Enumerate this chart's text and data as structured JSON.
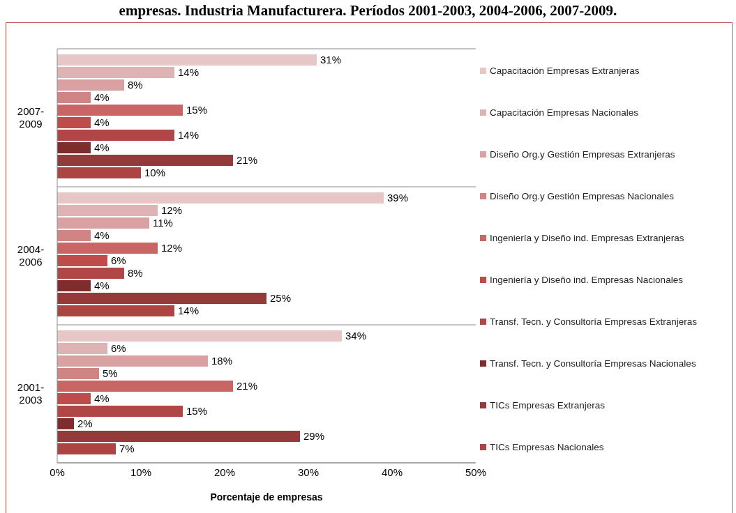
{
  "chart_data": {
    "type": "bar",
    "orientation": "horizontal",
    "title": "empresas. Industria Manufacturera. Períodos 2001-2003, 2004-2006, 2007-2009.",
    "xlabel": "Porcentaje de empresas",
    "categories": [
      "2007-2009",
      "2004-2006",
      "2001-2003"
    ],
    "series": [
      {
        "name": "Capacitación Empresas Extranjeras",
        "color": "#e7c6c7",
        "values": [
          31,
          39,
          34
        ],
        "value_labels": [
          "31%",
          "39%",
          "34%"
        ]
      },
      {
        "name": "Capacitación Empresas Nacionales",
        "color": "#dfb3b3",
        "values": [
          14,
          12,
          6
        ],
        "value_labels": [
          "14%",
          "12%",
          "6%"
        ]
      },
      {
        "name": "Diseño Org.y Gestión Empresas Extranjeras",
        "color": "#d9a1a1",
        "values": [
          8,
          11,
          18
        ],
        "value_labels": [
          "8%",
          "11%",
          "18%"
        ]
      },
      {
        "name": "Diseño Org.y Gestión Empresas Nacionales",
        "color": "#d08585",
        "values": [
          4,
          4,
          5
        ],
        "value_labels": [
          "4%",
          "4%",
          "5%"
        ]
      },
      {
        "name": "Ingeniería y Diseño ind. Empresas Extranjeras",
        "color": "#c96565",
        "values": [
          15,
          12,
          21
        ],
        "value_labels": [
          "15%",
          "12%",
          "21%"
        ]
      },
      {
        "name": "Ingeniería y Diseño ind. Empresas Nacionales",
        "color": "#c04b4b",
        "values": [
          4,
          6,
          4
        ],
        "value_labels": [
          "4%",
          "6%",
          "4%"
        ]
      },
      {
        "name": "Transf. Tecn. y Consultoría Empresas Extranjeras",
        "color": "#b04646",
        "values": [
          14,
          8,
          15
        ],
        "value_labels": [
          "14%",
          "8%",
          "15%"
        ]
      },
      {
        "name": "Transf. Tecn. y Consultoría Empresas Nacionales",
        "color": "#7f2c2c",
        "values": [
          4,
          4,
          2
        ],
        "value_labels": [
          "4%",
          "4%",
          "2%"
        ]
      },
      {
        "name": "TICs Empresas Extranjeras",
        "color": "#953a3a",
        "values": [
          21,
          25,
          29
        ],
        "value_labels": [
          "21%",
          "25%",
          "29%"
        ]
      },
      {
        "name": "TICs Empresas Nacionales",
        "color": "#ad4444",
        "values": [
          10,
          14,
          7
        ],
        "value_labels": [
          "10%",
          "14%",
          "7%"
        ]
      }
    ],
    "xlim": [
      0,
      50
    ],
    "xticks": [
      {
        "value": 0,
        "label": "0%"
      },
      {
        "value": 10,
        "label": "10%"
      },
      {
        "value": 20,
        "label": "20%"
      },
      {
        "value": 30,
        "label": "30%"
      },
      {
        "value": 40,
        "label": "40%"
      },
      {
        "value": 50,
        "label": "50%"
      }
    ],
    "grid": "y",
    "legend": "right"
  }
}
